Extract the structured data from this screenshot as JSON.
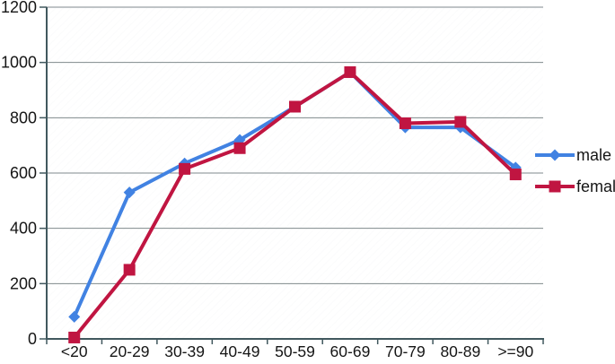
{
  "chart_data": {
    "type": "line",
    "title": "",
    "xlabel": "",
    "ylabel": "",
    "categories": [
      "<20",
      "20-29",
      "30-39",
      "40-49",
      "50-59",
      "60-69",
      "70-79",
      "80-89",
      ">=90"
    ],
    "series": [
      {
        "name": "male",
        "marker": "diamond",
        "color": "#4182e2",
        "values": [
          80,
          530,
          635,
          720,
          840,
          965,
          765,
          765,
          620
        ]
      },
      {
        "name": "female",
        "marker": "square",
        "color": "#c01541",
        "values": [
          5,
          250,
          615,
          690,
          840,
          965,
          780,
          785,
          595
        ]
      }
    ],
    "ylim": [
      0,
      1200
    ],
    "yticks": [
      0,
      200,
      400,
      600,
      800,
      1000,
      1200
    ],
    "grid": "horizontal gridlines every 200",
    "legend_position": "right-middle",
    "legend": [
      "male",
      "female"
    ]
  },
  "colors": {
    "male": "#4182e2",
    "female": "#c01541",
    "gridline": "#7f8a8c",
    "axis": "#41585e",
    "text": "#151515",
    "background": "#ffffff"
  }
}
